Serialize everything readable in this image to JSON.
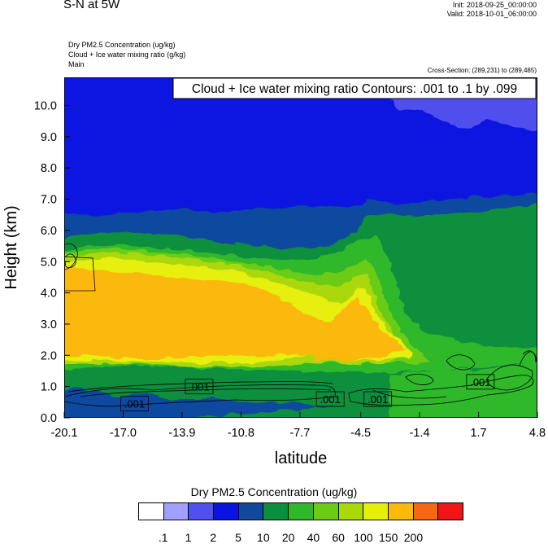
{
  "header": {
    "title": "S-N at 5W",
    "init": "Init: 2018-09-25_00:00:00",
    "valid": "Valid: 2018-10-01_06:00:00",
    "var_lines": [
      "Dry PM2.5 Concentration   (ug/kg)",
      "Cloud + Ice water mixing ratio   (g/kg)",
      "Main"
    ],
    "cross_section": "Cross-Section: (289,231) to (289,485)"
  },
  "chart_data": {
    "type": "heatmap",
    "title": "Cloud + Ice water mixing ratio Contours: .001 to .1 by .099",
    "xlabel": "latitude",
    "ylabel": "Height (km)",
    "x_ticks": [
      "-20.1",
      "-17.0",
      "-13.9",
      "-10.8",
      "-7.7",
      "-4.5",
      "-1.4",
      "1.7",
      "4.8"
    ],
    "y_ticks": [
      "0.0",
      "1.0",
      "2.0",
      "3.0",
      "4.0",
      "5.0",
      "6.0",
      "7.0",
      "8.0",
      "9.0",
      "10.0"
    ],
    "xlim": [
      -20.1,
      4.8
    ],
    "ylim": [
      0,
      10.9
    ],
    "contour_labels": [
      {
        "text": ".001",
        "x": -16.4,
        "y": 0.45
      },
      {
        "text": ".001",
        "x": -13.0,
        "y": 1.0
      },
      {
        "text": ".001",
        "x": -6.1,
        "y": 0.6
      },
      {
        "text": ".001",
        "x": -3.6,
        "y": 0.6
      },
      {
        "text": ".001",
        "x": 1.8,
        "y": 1.15
      }
    ],
    "colorbar": {
      "title": "Dry PM2.5 Concentration  (ug/kg)",
      "labels": [
        ".1",
        "1",
        "2",
        "5",
        "10",
        "20",
        "40",
        "60",
        "100",
        "150",
        "200"
      ],
      "colors": [
        "#ffffff",
        "#a0a0ff",
        "#5050ee",
        "#0a14e0",
        "#11489e",
        "#0a8f3e",
        "#2fb82a",
        "#6acc14",
        "#aad80a",
        "#e6ef0a",
        "#fbb90c",
        "#f76611",
        "#f21515"
      ]
    },
    "grid": false
  }
}
